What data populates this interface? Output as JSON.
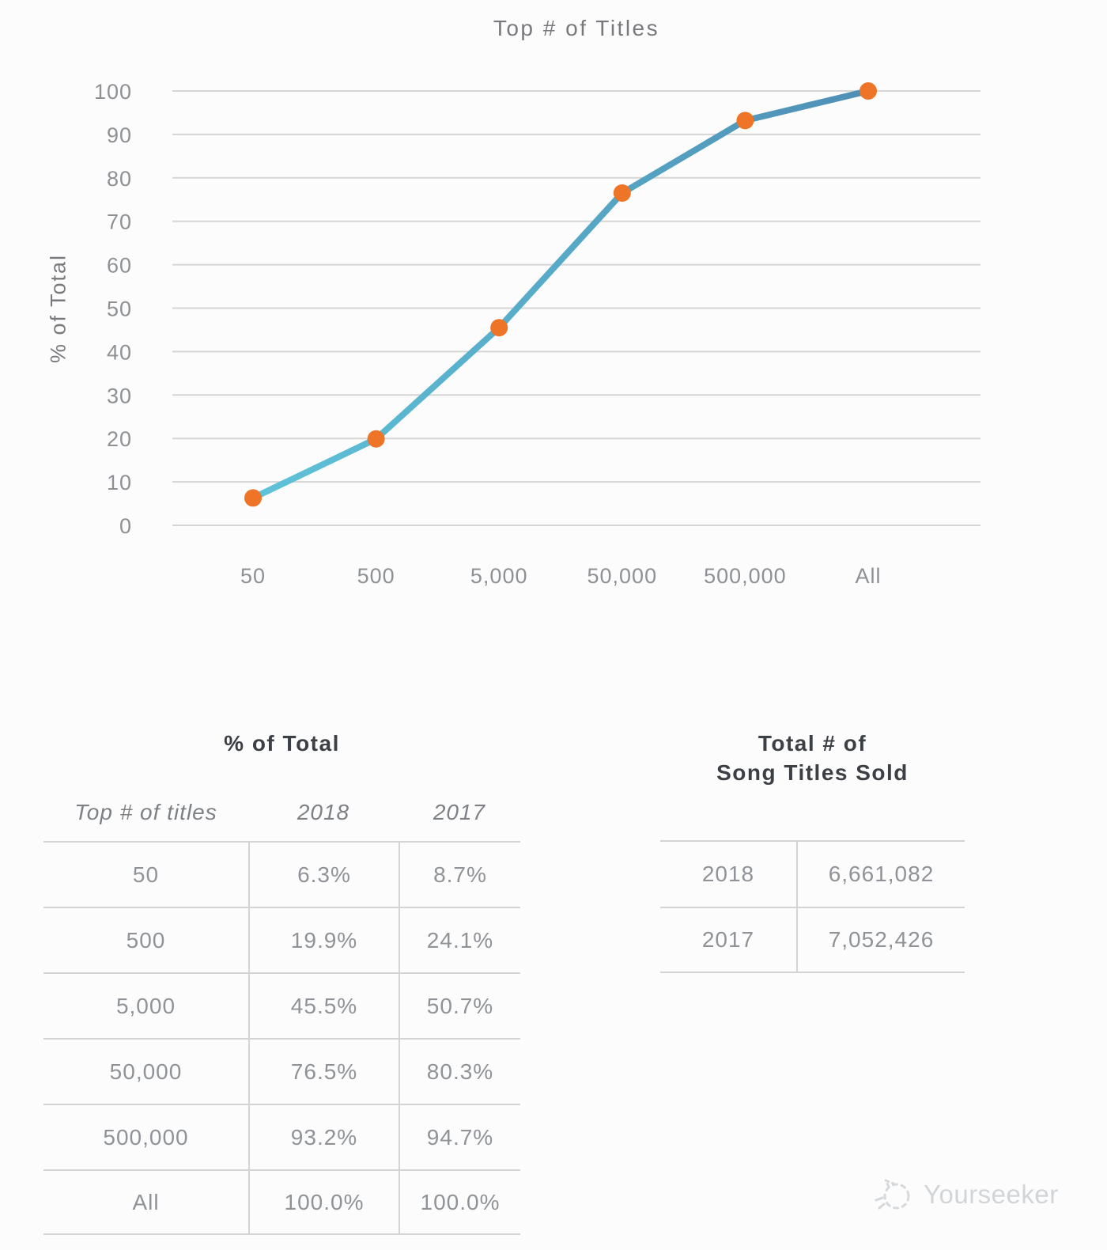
{
  "chart": {
    "title": "Top # of Titles",
    "ylabel": "% of Total"
  },
  "chart_data": {
    "type": "line",
    "title": "Top # of Titles",
    "categories": [
      "50",
      "500",
      "5,000",
      "50,000",
      "500,000",
      "All"
    ],
    "series": [
      {
        "name": "2018",
        "values": [
          6.3,
          19.9,
          45.5,
          76.5,
          93.2,
          100.0
        ]
      }
    ],
    "xlabel": "",
    "ylabel": "% of Total",
    "ylim": [
      0,
      100
    ],
    "ytick_step": 10,
    "grid": true,
    "legend": false,
    "line_color_start": "#5ec3d9",
    "line_color_end": "#4f8fb5",
    "marker_color": "#ee7428",
    "gridline_color": "#d5d5d5"
  },
  "tables": {
    "percent_of_total": {
      "title": "% of Total",
      "columns": [
        "Top # of titles",
        "2018",
        "2017"
      ],
      "rows": [
        [
          "50",
          "6.3%",
          "8.7%"
        ],
        [
          "500",
          "19.9%",
          "24.1%"
        ],
        [
          "5,000",
          "45.5%",
          "50.7%"
        ],
        [
          "50,000",
          "76.5%",
          "80.3%"
        ],
        [
          "500,000",
          "93.2%",
          "94.7%"
        ],
        [
          "All",
          "100.0%",
          "100.0%"
        ]
      ]
    },
    "titles_sold": {
      "title_line1": "Total # of",
      "title_line2": "Song Titles Sold",
      "rows": [
        [
          "2018",
          "6,661,082"
        ],
        [
          "2017",
          "7,052,426"
        ]
      ]
    }
  },
  "watermark": {
    "label": "Yourseeker"
  }
}
